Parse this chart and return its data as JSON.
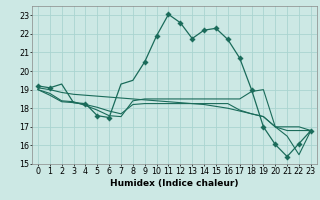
{
  "xlabel": "Humidex (Indice chaleur)",
  "bg_color": "#cce8e4",
  "grid_color": "#aad4d0",
  "line_color": "#1a6b5a",
  "xlim": [
    -0.5,
    23.5
  ],
  "ylim": [
    15,
    23.5
  ],
  "xticks": [
    0,
    1,
    2,
    3,
    4,
    5,
    6,
    7,
    8,
    9,
    10,
    11,
    12,
    13,
    14,
    15,
    16,
    17,
    18,
    19,
    20,
    21,
    22,
    23
  ],
  "yticks": [
    15,
    16,
    17,
    18,
    19,
    20,
    21,
    22,
    23
  ],
  "series1_y": [
    19.2,
    19.1,
    19.3,
    18.3,
    18.25,
    17.6,
    17.5,
    19.3,
    19.5,
    20.5,
    21.9,
    23.05,
    22.6,
    21.75,
    22.2,
    22.3,
    21.7,
    20.7,
    19.0,
    17.0,
    16.05,
    15.4,
    16.1,
    16.8
  ],
  "series2_y": [
    19.1,
    19.0,
    18.85,
    18.75,
    18.7,
    18.65,
    18.6,
    18.55,
    18.5,
    18.45,
    18.4,
    18.35,
    18.3,
    18.25,
    18.2,
    18.1,
    18.0,
    17.85,
    17.7,
    17.55,
    17.0,
    16.8,
    16.8,
    16.8
  ],
  "series3_y": [
    19.0,
    18.8,
    18.4,
    18.35,
    18.15,
    17.9,
    17.6,
    17.55,
    18.4,
    18.5,
    18.5,
    18.5,
    18.5,
    18.5,
    18.5,
    18.5,
    18.5,
    18.5,
    18.9,
    19.0,
    17.0,
    16.5,
    15.5,
    16.8
  ],
  "series4_y": [
    19.0,
    18.7,
    18.35,
    18.3,
    18.2,
    18.05,
    17.85,
    17.7,
    18.2,
    18.25,
    18.25,
    18.25,
    18.25,
    18.25,
    18.25,
    18.25,
    18.25,
    17.9,
    17.7,
    17.55,
    17.0,
    17.0,
    17.0,
    16.8
  ],
  "s1_marker_x": [
    0,
    1,
    4,
    5,
    6,
    9,
    10,
    11,
    12,
    13,
    14,
    15,
    16,
    17,
    18,
    19,
    20,
    21,
    22,
    23
  ],
  "s1_marker_y": [
    19.2,
    19.1,
    18.25,
    17.6,
    17.5,
    20.5,
    21.9,
    23.05,
    22.6,
    21.75,
    22.2,
    22.3,
    21.7,
    20.7,
    19.0,
    17.0,
    16.05,
    15.4,
    16.1,
    16.8
  ],
  "font_size_label": 6.5,
  "font_size_tick": 5.8
}
